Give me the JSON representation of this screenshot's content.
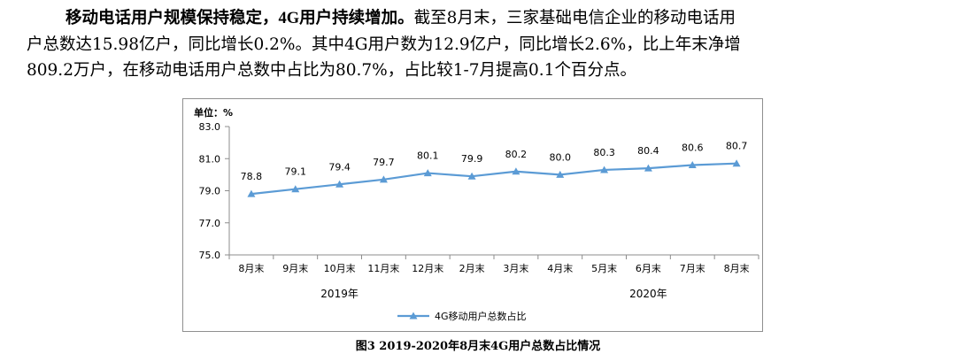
{
  "paragraph": {
    "line1_bold_a": "移动电话用户规模保持稳定，",
    "line1_bold_b": "4G",
    "line1_bold_c": "用户持续增加。",
    "line1_rest": "截至8月末，三家基础电信企业的移动电话用",
    "line2": "户总数达15.98亿户，同比增长0.2%。其中4G用户数为12.9亿户，同比增长2.6%，比上年末净增",
    "line3": "809.2万户，在移动电话用户总数中占比为80.7%，占比较1-7月提高0.1个百分点。"
  },
  "chart_data": {
    "type": "line",
    "unit_label": "单位：%",
    "categories": [
      "8月末",
      "9月末",
      "10月末",
      "11月末",
      "12月末",
      "2月末",
      "3月末",
      "4月末",
      "5月末",
      "6月末",
      "7月末",
      "8月末"
    ],
    "year_labels": [
      "2019年",
      "2020年"
    ],
    "series": [
      {
        "name": "4G移动用户总数占比",
        "values": [
          78.8,
          79.1,
          79.4,
          79.7,
          80.1,
          79.9,
          80.2,
          80.0,
          80.3,
          80.4,
          80.6,
          80.7
        ],
        "color": "#5b9bd5"
      }
    ],
    "yticks": [
      "75.0",
      "77.0",
      "79.0",
      "81.0",
      "83.0"
    ],
    "ylim": [
      75.0,
      83.0
    ],
    "grid": false,
    "legend": "bottom"
  },
  "caption": "图3 2019-2020年8月末4G用户总数占比情况"
}
